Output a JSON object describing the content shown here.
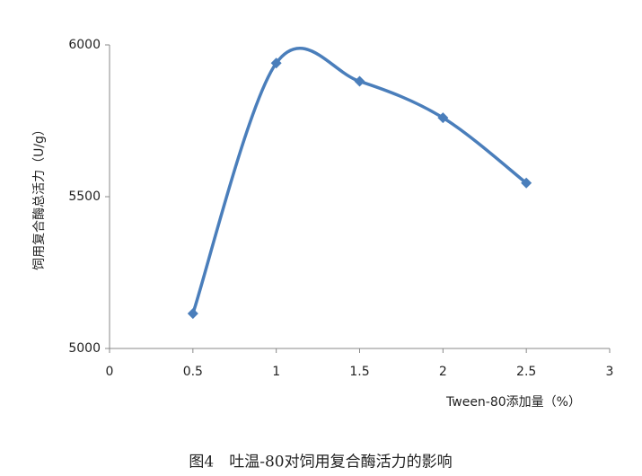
{
  "chart_data": {
    "type": "line",
    "x": [
      0.5,
      1,
      1.5,
      2,
      2.5
    ],
    "series": [
      {
        "color": "#4a7ebb",
        "values": [
          5115,
          5940,
          5880,
          5760,
          5545
        ]
      }
    ],
    "xlim": [
      0,
      3
    ],
    "xticks": [
      0,
      0.5,
      1,
      1.5,
      2,
      2.5,
      3
    ],
    "ylim": [
      5000,
      6000
    ],
    "yticks": [
      5000,
      5500,
      6000
    ],
    "x_label": "Tween-80添加量（%）",
    "y_label": "饲用复合酶总活力（U/g）",
    "caption": "图4　吐温-80对饲用复合酶活力的影响",
    "smooth": true,
    "grid": false
  }
}
